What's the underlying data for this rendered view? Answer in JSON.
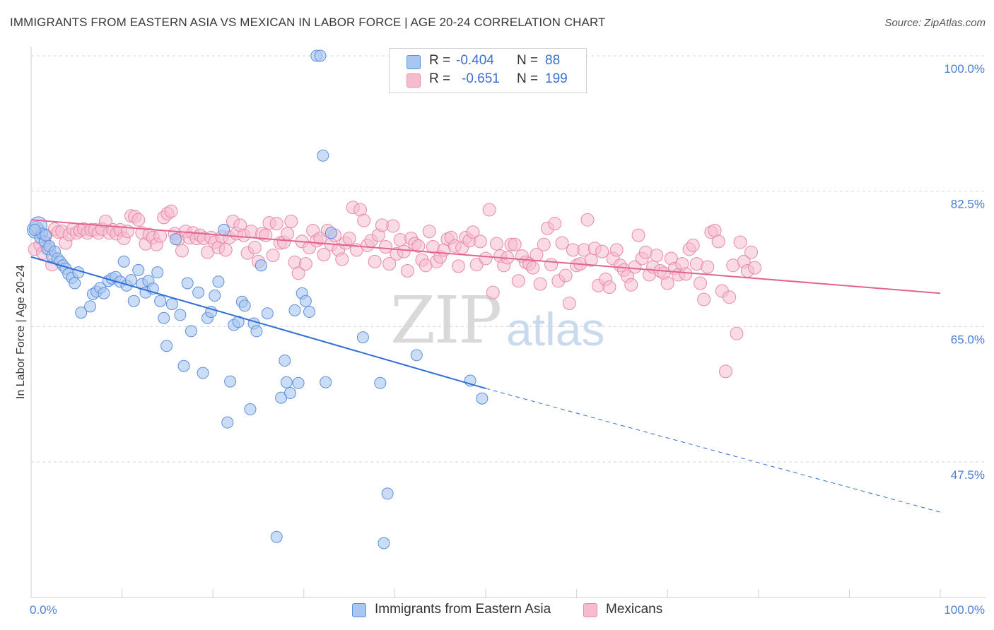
{
  "title": "IMMIGRANTS FROM EASTERN ASIA VS MEXICAN IN LABOR FORCE | AGE 20-24 CORRELATION CHART",
  "source": "Source: ZipAtlas.com",
  "watermark": {
    "zip": "ZIP",
    "atlas": "atlas"
  },
  "legend": {
    "r_label": "R =",
    "n_label": "N =",
    "rows": [
      {
        "r": "-0.404",
        "n": "88",
        "swatch": "#a9c6f0"
      },
      {
        "r": "-0.651",
        "n": "199",
        "swatch": "#f5bcd0"
      }
    ]
  },
  "bottom_legend": [
    {
      "label": "Immigrants from Eastern Asia",
      "swatch": "#a9c6f0"
    },
    {
      "label": "Mexicans",
      "swatch": "#f5bcd0"
    }
  ],
  "colors": {
    "blue_fill": "#a9c6f0",
    "blue_stroke": "#5b8fdc",
    "blue_line": "#2f6fd6",
    "pink_fill": "#f5bcd0",
    "pink_stroke": "#e88aa9",
    "pink_line": "#e2648f",
    "grid": "#d6d6d6",
    "tick_text": "#4a7fd4"
  },
  "chart_data": {
    "type": "scatter",
    "title": "IMMIGRANTS FROM EASTERN ASIA VS MEXICAN IN LABOR FORCE | AGE 20-24 CORRELATION CHART",
    "xlabel": "",
    "ylabel": "In Labor Force | Age 20-24",
    "x_tick_labels": [
      "0.0%",
      "100.0%"
    ],
    "y_tick_labels": [
      "100.0%",
      "82.5%",
      "65.0%",
      "47.5%"
    ],
    "y_ticks": [
      100.0,
      82.5,
      65.0,
      47.5
    ],
    "xlim": [
      0,
      100
    ],
    "ylim": [
      31.5,
      103
    ],
    "grid": "horizontal dashed",
    "legend_position": "top-center",
    "series": [
      {
        "name": "Immigrants from Eastern Asia",
        "R": -0.404,
        "N": 88,
        "trend": {
          "x": [
            0,
            50
          ],
          "y": [
            74.0,
            57.0
          ],
          "extended_to": [
            100,
            41.0
          ]
        },
        "points": [
          [
            0.5,
            77.5
          ],
          [
            0.8,
            78.1
          ],
          [
            1.0,
            76.5
          ],
          [
            1.2,
            77.0
          ],
          [
            1.5,
            76.0
          ],
          [
            1.8,
            75.0
          ],
          [
            2.0,
            75.4
          ],
          [
            2.3,
            74.1
          ],
          [
            2.6,
            74.7
          ],
          [
            2.9,
            73.8
          ],
          [
            3.2,
            73.4
          ],
          [
            3.5,
            72.9
          ],
          [
            3.8,
            72.5
          ],
          [
            4.1,
            71.8
          ],
          [
            4.5,
            71.3
          ],
          [
            4.8,
            70.6
          ],
          [
            5.2,
            72.0
          ],
          [
            5.5,
            66.8
          ],
          [
            6.5,
            67.6
          ],
          [
            6.8,
            69.2
          ],
          [
            7.2,
            69.5
          ],
          [
            7.6,
            70.0
          ],
          [
            8.0,
            69.3
          ],
          [
            8.5,
            70.9
          ],
          [
            8.9,
            71.2
          ],
          [
            9.3,
            71.4
          ],
          [
            9.8,
            70.8
          ],
          [
            10.2,
            73.4
          ],
          [
            10.5,
            70.3
          ],
          [
            11.0,
            71.0
          ],
          [
            11.3,
            68.3
          ],
          [
            11.8,
            72.3
          ],
          [
            12.2,
            70.5
          ],
          [
            12.6,
            69.4
          ],
          [
            12.9,
            70.9
          ],
          [
            13.4,
            69.9
          ],
          [
            13.9,
            72.0
          ],
          [
            14.2,
            68.3
          ],
          [
            14.6,
            66.1
          ],
          [
            14.9,
            62.5
          ],
          [
            15.5,
            67.9
          ],
          [
            15.9,
            76.3
          ],
          [
            16.4,
            66.5
          ],
          [
            16.8,
            59.9
          ],
          [
            17.2,
            70.6
          ],
          [
            17.6,
            64.4
          ],
          [
            18.4,
            69.4
          ],
          [
            18.9,
            59.0
          ],
          [
            19.4,
            66.1
          ],
          [
            19.8,
            66.9
          ],
          [
            20.2,
            69.0
          ],
          [
            20.6,
            70.8
          ],
          [
            21.2,
            77.5
          ],
          [
            21.6,
            52.6
          ],
          [
            21.9,
            57.9
          ],
          [
            22.3,
            65.2
          ],
          [
            22.8,
            65.6
          ],
          [
            23.2,
            68.2
          ],
          [
            23.5,
            67.7
          ],
          [
            24.1,
            54.3
          ],
          [
            24.5,
            65.4
          ],
          [
            24.8,
            64.4
          ],
          [
            25.3,
            72.9
          ],
          [
            26.0,
            66.7
          ],
          [
            27.0,
            37.8
          ],
          [
            27.5,
            55.8
          ],
          [
            27.9,
            60.6
          ],
          [
            28.1,
            57.8
          ],
          [
            28.5,
            56.4
          ],
          [
            29.0,
            67.1
          ],
          [
            29.4,
            57.7
          ],
          [
            29.8,
            69.3
          ],
          [
            30.2,
            68.3
          ],
          [
            30.6,
            66.9
          ],
          [
            31.4,
            100.0
          ],
          [
            31.8,
            100.0
          ],
          [
            32.1,
            87.1
          ],
          [
            32.4,
            57.8
          ],
          [
            33.0,
            77.1
          ],
          [
            36.5,
            63.6
          ],
          [
            38.4,
            57.7
          ],
          [
            38.8,
            37.0
          ],
          [
            39.2,
            43.4
          ],
          [
            42.4,
            61.3
          ],
          [
            48.3,
            58.0
          ],
          [
            49.6,
            55.7
          ],
          [
            0.4,
            77.5
          ],
          [
            1.6,
            76.8
          ]
        ]
      },
      {
        "name": "Mexicans",
        "R": -0.651,
        "N": 199,
        "trend": {
          "x": [
            0,
            100
          ],
          "y": [
            78.8,
            69.3
          ]
        },
        "points": [
          [
            0.4,
            75.0
          ],
          [
            0.7,
            77.5
          ],
          [
            1.0,
            75.5
          ],
          [
            1.3,
            74.5
          ],
          [
            1.6,
            76.8
          ],
          [
            2.0,
            75.1
          ],
          [
            2.3,
            73.0
          ],
          [
            2.6,
            77.6
          ],
          [
            3.0,
            77.2
          ],
          [
            3.4,
            77.3
          ],
          [
            3.8,
            75.8
          ],
          [
            4.2,
            76.9
          ],
          [
            4.6,
            77.6
          ],
          [
            5.0,
            77.1
          ],
          [
            5.4,
            77.4
          ],
          [
            5.8,
            77.6
          ],
          [
            6.2,
            77.1
          ],
          [
            6.6,
            77.5
          ],
          [
            7.0,
            77.5
          ],
          [
            7.4,
            77.1
          ],
          [
            7.8,
            77.6
          ],
          [
            8.2,
            78.6
          ],
          [
            8.6,
            77.1
          ],
          [
            9.0,
            77.5
          ],
          [
            9.4,
            77.0
          ],
          [
            9.8,
            77.5
          ],
          [
            10.2,
            76.4
          ],
          [
            10.6,
            77.3
          ],
          [
            11.0,
            79.3
          ],
          [
            11.4,
            79.2
          ],
          [
            11.8,
            78.8
          ],
          [
            12.2,
            77.1
          ],
          [
            12.6,
            75.7
          ],
          [
            13.0,
            76.9
          ],
          [
            13.4,
            76.5
          ],
          [
            13.8,
            75.6
          ],
          [
            14.2,
            76.7
          ],
          [
            14.6,
            79.1
          ],
          [
            15.0,
            79.6
          ],
          [
            15.4,
            79.9
          ],
          [
            15.8,
            77.0
          ],
          [
            16.2,
            76.3
          ],
          [
            16.6,
            74.8
          ],
          [
            17.0,
            77.3
          ],
          [
            17.4,
            76.5
          ],
          [
            17.8,
            77.1
          ],
          [
            18.2,
            76.4
          ],
          [
            18.6,
            76.8
          ],
          [
            19.0,
            76.4
          ],
          [
            19.4,
            74.6
          ],
          [
            19.8,
            76.5
          ],
          [
            20.2,
            75.9
          ],
          [
            20.6,
            75.2
          ],
          [
            21.0,
            76.6
          ],
          [
            21.4,
            74.9
          ],
          [
            21.8,
            76.5
          ],
          [
            22.2,
            78.6
          ],
          [
            22.6,
            77.0
          ],
          [
            23.0,
            78.1
          ],
          [
            23.4,
            76.8
          ],
          [
            23.8,
            74.5
          ],
          [
            24.2,
            77.3
          ],
          [
            24.6,
            75.2
          ],
          [
            25.0,
            73.4
          ],
          [
            25.4,
            77.0
          ],
          [
            25.8,
            76.8
          ],
          [
            26.2,
            78.4
          ],
          [
            26.6,
            74.2
          ],
          [
            27.0,
            78.3
          ],
          [
            27.4,
            75.8
          ],
          [
            27.8,
            75.9
          ],
          [
            28.2,
            77.0
          ],
          [
            28.6,
            78.6
          ],
          [
            29.0,
            73.3
          ],
          [
            29.4,
            71.9
          ],
          [
            29.8,
            76.0
          ],
          [
            30.2,
            73.1
          ],
          [
            30.6,
            75.2
          ],
          [
            31.0,
            77.4
          ],
          [
            31.4,
            76.1
          ],
          [
            31.8,
            76.4
          ],
          [
            32.2,
            74.3
          ],
          [
            32.6,
            77.4
          ],
          [
            33.0,
            75.6
          ],
          [
            33.4,
            76.8
          ],
          [
            33.8,
            74.9
          ],
          [
            34.2,
            73.7
          ],
          [
            34.6,
            75.8
          ],
          [
            35.0,
            76.4
          ],
          [
            35.4,
            80.4
          ],
          [
            35.8,
            74.9
          ],
          [
            36.2,
            80.1
          ],
          [
            36.6,
            78.7
          ],
          [
            37.0,
            75.5
          ],
          [
            37.4,
            76.1
          ],
          [
            37.8,
            73.4
          ],
          [
            38.2,
            76.8
          ],
          [
            38.6,
            78.1
          ],
          [
            39.0,
            75.3
          ],
          [
            39.4,
            73.1
          ],
          [
            39.8,
            78.0
          ],
          [
            40.2,
            74.4
          ],
          [
            40.6,
            76.2
          ],
          [
            41.0,
            74.7
          ],
          [
            41.4,
            72.2
          ],
          [
            41.8,
            76.4
          ],
          [
            42.2,
            75.7
          ],
          [
            42.6,
            75.4
          ],
          [
            43.0,
            73.6
          ],
          [
            43.4,
            72.9
          ],
          [
            43.8,
            77.3
          ],
          [
            44.2,
            75.3
          ],
          [
            44.6,
            73.4
          ],
          [
            45.0,
            74.0
          ],
          [
            45.4,
            74.9
          ],
          [
            45.8,
            76.3
          ],
          [
            46.2,
            76.5
          ],
          [
            46.6,
            75.4
          ],
          [
            47.0,
            72.8
          ],
          [
            47.4,
            75.2
          ],
          [
            47.8,
            76.5
          ],
          [
            48.2,
            76.1
          ],
          [
            48.6,
            77.2
          ],
          [
            49.0,
            73.0
          ],
          [
            49.4,
            76.0
          ],
          [
            50.0,
            73.8
          ],
          [
            50.4,
            80.1
          ],
          [
            50.8,
            69.4
          ],
          [
            51.2,
            75.7
          ],
          [
            51.6,
            74.1
          ],
          [
            52.0,
            72.9
          ],
          [
            52.4,
            73.9
          ],
          [
            52.8,
            75.6
          ],
          [
            53.2,
            75.6
          ],
          [
            53.6,
            70.9
          ],
          [
            54.0,
            74.1
          ],
          [
            54.4,
            73.3
          ],
          [
            54.8,
            73.1
          ],
          [
            55.2,
            72.6
          ],
          [
            55.6,
            74.3
          ],
          [
            56.0,
            70.5
          ],
          [
            56.4,
            75.6
          ],
          [
            56.8,
            77.7
          ],
          [
            57.2,
            73.0
          ],
          [
            57.6,
            78.3
          ],
          [
            58.0,
            70.9
          ],
          [
            58.4,
            75.8
          ],
          [
            58.8,
            71.6
          ],
          [
            59.2,
            68.0
          ],
          [
            59.6,
            74.9
          ],
          [
            60.0,
            72.9
          ],
          [
            60.4,
            73.1
          ],
          [
            60.8,
            74.9
          ],
          [
            61.2,
            78.8
          ],
          [
            61.6,
            73.6
          ],
          [
            62.0,
            75.1
          ],
          [
            62.4,
            70.3
          ],
          [
            62.8,
            74.7
          ],
          [
            63.2,
            71.1
          ],
          [
            63.6,
            70.1
          ],
          [
            64.0,
            73.8
          ],
          [
            64.4,
            74.9
          ],
          [
            64.8,
            72.9
          ],
          [
            65.2,
            72.3
          ],
          [
            65.6,
            71.5
          ],
          [
            66.0,
            70.4
          ],
          [
            66.4,
            72.7
          ],
          [
            66.8,
            76.8
          ],
          [
            67.2,
            73.8
          ],
          [
            67.6,
            74.6
          ],
          [
            68.0,
            71.7
          ],
          [
            68.4,
            72.7
          ],
          [
            68.8,
            74.2
          ],
          [
            69.2,
            72.2
          ],
          [
            69.6,
            71.9
          ],
          [
            70.0,
            70.6
          ],
          [
            70.4,
            73.8
          ],
          [
            70.8,
            72.5
          ],
          [
            71.2,
            71.7
          ],
          [
            71.6,
            73.1
          ],
          [
            72.0,
            71.8
          ],
          [
            72.4,
            75.0
          ],
          [
            72.8,
            75.5
          ],
          [
            73.2,
            73.1
          ],
          [
            73.6,
            70.6
          ],
          [
            74.0,
            68.5
          ],
          [
            74.4,
            72.7
          ],
          [
            74.8,
            77.2
          ],
          [
            75.2,
            77.4
          ],
          [
            75.6,
            76.0
          ],
          [
            76.0,
            69.6
          ],
          [
            76.4,
            59.2
          ],
          [
            76.8,
            68.8
          ],
          [
            77.2,
            72.9
          ],
          [
            77.6,
            64.1
          ],
          [
            78.0,
            75.9
          ],
          [
            78.4,
            73.4
          ],
          [
            78.8,
            72.2
          ],
          [
            79.2,
            74.6
          ],
          [
            79.6,
            72.6
          ]
        ]
      }
    ]
  }
}
